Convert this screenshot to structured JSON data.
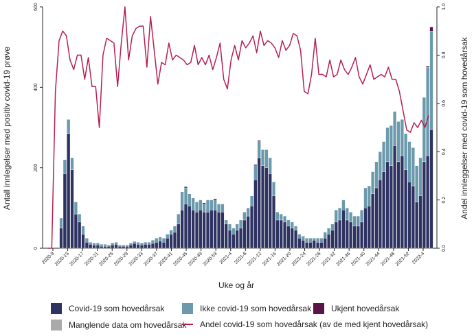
{
  "chart_data": {
    "type": "bar",
    "stacked": true,
    "xlabel": "Uke og år",
    "ylabel": "Antall innlegelser med positiv covid-19 prøve",
    "y2label": "Andel innleggelser med covid-19 som hovedårsak",
    "ylim": [
      0,
      600
    ],
    "y2lim": [
      0,
      1.0
    ],
    "yticks": [
      "0",
      "200",
      "400",
      "600"
    ],
    "y2ticks": [
      "0.0",
      "0.2",
      "0.4",
      "0.6",
      "0.8",
      "1.0"
    ],
    "xtick_labels": [
      "2020-9",
      "2020-13",
      "2020-17",
      "2020-21",
      "2020-25",
      "2020-29",
      "2020-33",
      "2020-37",
      "2020-41",
      "2020-45",
      "2020-49",
      "2020-53",
      "2021-4",
      "2021-8",
      "2021-12",
      "2021-16",
      "2021-20",
      "2021-24",
      "2021-28",
      "2021-32",
      "2021-36",
      "2021-40",
      "2021-44",
      "2021-48",
      "2021-52",
      "2022-4"
    ],
    "series": [
      {
        "name": "Covid-19 som hovedårsak",
        "color": "#2e3362",
        "values": [
          0,
          0,
          0,
          50,
          185,
          285,
          195,
          85,
          65,
          35,
          15,
          10,
          8,
          8,
          5,
          5,
          5,
          8,
          10,
          5,
          5,
          5,
          8,
          12,
          10,
          8,
          10,
          10,
          12,
          15,
          18,
          15,
          25,
          35,
          40,
          60,
          95,
          110,
          105,
          95,
          90,
          95,
          90,
          90,
          95,
          95,
          90,
          90,
          60,
          45,
          35,
          45,
          50,
          70,
          80,
          105,
          170,
          225,
          205,
          200,
          185,
          130,
          70,
          70,
          65,
          55,
          50,
          45,
          25,
          20,
          15,
          15,
          20,
          15,
          15,
          25,
          35,
          45,
          65,
          70,
          95,
          70,
          65,
          55,
          55,
          65,
          100,
          105,
          135,
          150,
          170,
          190,
          215,
          205,
          255,
          215,
          230,
          195,
          165,
          155,
          115,
          130,
          215,
          230,
          295
        ]
      },
      {
        "name": "Ikke covid-19 som hovedårsak",
        "color": "#6b9aad",
        "values": [
          0,
          0,
          0,
          25,
          35,
          35,
          30,
          30,
          20,
          20,
          10,
          5,
          5,
          5,
          5,
          5,
          3,
          5,
          5,
          3,
          3,
          3,
          5,
          5,
          5,
          5,
          5,
          5,
          8,
          10,
          10,
          10,
          10,
          10,
          15,
          25,
          45,
          40,
          30,
          30,
          25,
          25,
          20,
          30,
          25,
          25,
          20,
          20,
          10,
          15,
          15,
          15,
          20,
          20,
          20,
          25,
          35,
          40,
          40,
          45,
          40,
          35,
          20,
          15,
          15,
          15,
          15,
          10,
          10,
          10,
          10,
          10,
          5,
          10,
          10,
          15,
          15,
          15,
          30,
          30,
          25,
          30,
          25,
          25,
          25,
          30,
          50,
          50,
          55,
          65,
          70,
          75,
          85,
          100,
          85,
          100,
          90,
          90,
          100,
          95,
          90,
          95,
          160,
          220,
          245
        ]
      },
      {
        "name": "Ukjent hovedårsak",
        "color": "#5b1448",
        "values": [
          0,
          0,
          0,
          0,
          0,
          0,
          0,
          0,
          0,
          0,
          0,
          0,
          0,
          0,
          0,
          0,
          0,
          0,
          0,
          0,
          0,
          0,
          0,
          0,
          0,
          0,
          0,
          0,
          0,
          0,
          0,
          0,
          0,
          0,
          0,
          0,
          0,
          3,
          0,
          0,
          0,
          0,
          3,
          0,
          0,
          3,
          0,
          0,
          0,
          0,
          0,
          0,
          0,
          0,
          0,
          0,
          3,
          3,
          0,
          0,
          0,
          0,
          0,
          0,
          0,
          0,
          0,
          0,
          0,
          0,
          0,
          0,
          0,
          0,
          0,
          0,
          0,
          0,
          0,
          0,
          0,
          0,
          0,
          0,
          0,
          0,
          0,
          0,
          0,
          0,
          0,
          0,
          0,
          0,
          0,
          0,
          0,
          0,
          0,
          0,
          0,
          0,
          0,
          3,
          10
        ]
      },
      {
        "name": "Manglende data om hovedårsak",
        "color": "#aaaaaa",
        "values": [
          0,
          0,
          0,
          0,
          0,
          0,
          0,
          0,
          0,
          0,
          0,
          0,
          0,
          0,
          0,
          0,
          0,
          0,
          0,
          0,
          0,
          0,
          0,
          0,
          0,
          0,
          0,
          0,
          0,
          0,
          0,
          0,
          0,
          0,
          0,
          0,
          0,
          0,
          0,
          0,
          0,
          0,
          0,
          0,
          0,
          0,
          0,
          0,
          0,
          0,
          0,
          0,
          0,
          0,
          0,
          0,
          0,
          0,
          0,
          0,
          0,
          0,
          0,
          0,
          0,
          0,
          0,
          0,
          0,
          0,
          0,
          0,
          0,
          0,
          0,
          0,
          0,
          0,
          0,
          0,
          0,
          0,
          0,
          0,
          0,
          0,
          0,
          0,
          0,
          0,
          0,
          0,
          0,
          0,
          0,
          0,
          0,
          0,
          0,
          0,
          0,
          0,
          0,
          0,
          0
        ]
      },
      {
        "name": "Andel covid-19 som hovedårsak (av de med kjent hovedårsak)",
        "color": "#b5204f",
        "type": "line",
        "axis": "y2",
        "values": [
          0,
          0,
          0.65,
          0.86,
          0.9,
          0.88,
          0.78,
          0.74,
          0.8,
          0.8,
          0.7,
          0.79,
          0.67,
          0.67,
          0.5,
          0.8,
          0.87,
          0.86,
          0.85,
          0.67,
          0.85,
          1.0,
          0.78,
          0.88,
          0.91,
          0.92,
          0.92,
          0.75,
          0.96,
          0.82,
          0.68,
          0.77,
          0.76,
          0.85,
          0.78,
          0.8,
          0.79,
          0.78,
          0.76,
          0.77,
          0.84,
          0.76,
          0.79,
          0.76,
          0.8,
          0.74,
          0.79,
          0.85,
          0.7,
          0.66,
          0.78,
          0.84,
          0.78,
          0.86,
          0.83,
          0.85,
          0.88,
          0.81,
          0.9,
          0.84,
          0.86,
          0.85,
          0.83,
          0.79,
          0.86,
          0.82,
          0.84,
          0.89,
          0.88,
          0.82,
          0.65,
          0.64,
          0.72,
          0.87,
          0.72,
          0.72,
          0.71,
          0.78,
          0.71,
          0.72,
          0.78,
          0.74,
          0.72,
          0.75,
          0.79,
          0.71,
          0.68,
          0.72,
          0.76,
          0.7,
          0.71,
          0.72,
          0.71,
          0.75,
          0.7,
          0.7,
          0.65,
          0.57,
          0.49,
          0.48,
          0.52,
          0.5,
          0.53,
          0.5,
          0.55
        ]
      }
    ]
  },
  "legend": {
    "covid": "Covid-19 som hovedårsak",
    "ikke_covid": "Ikke covid-19 som hovedårsak",
    "ukjent": "Ukjent hovedårsak",
    "manglende": "Manglende data om hovedårsak",
    "andel": "Andel covid-19 som hovedårsak (av de med kjent hovedårsak)"
  }
}
